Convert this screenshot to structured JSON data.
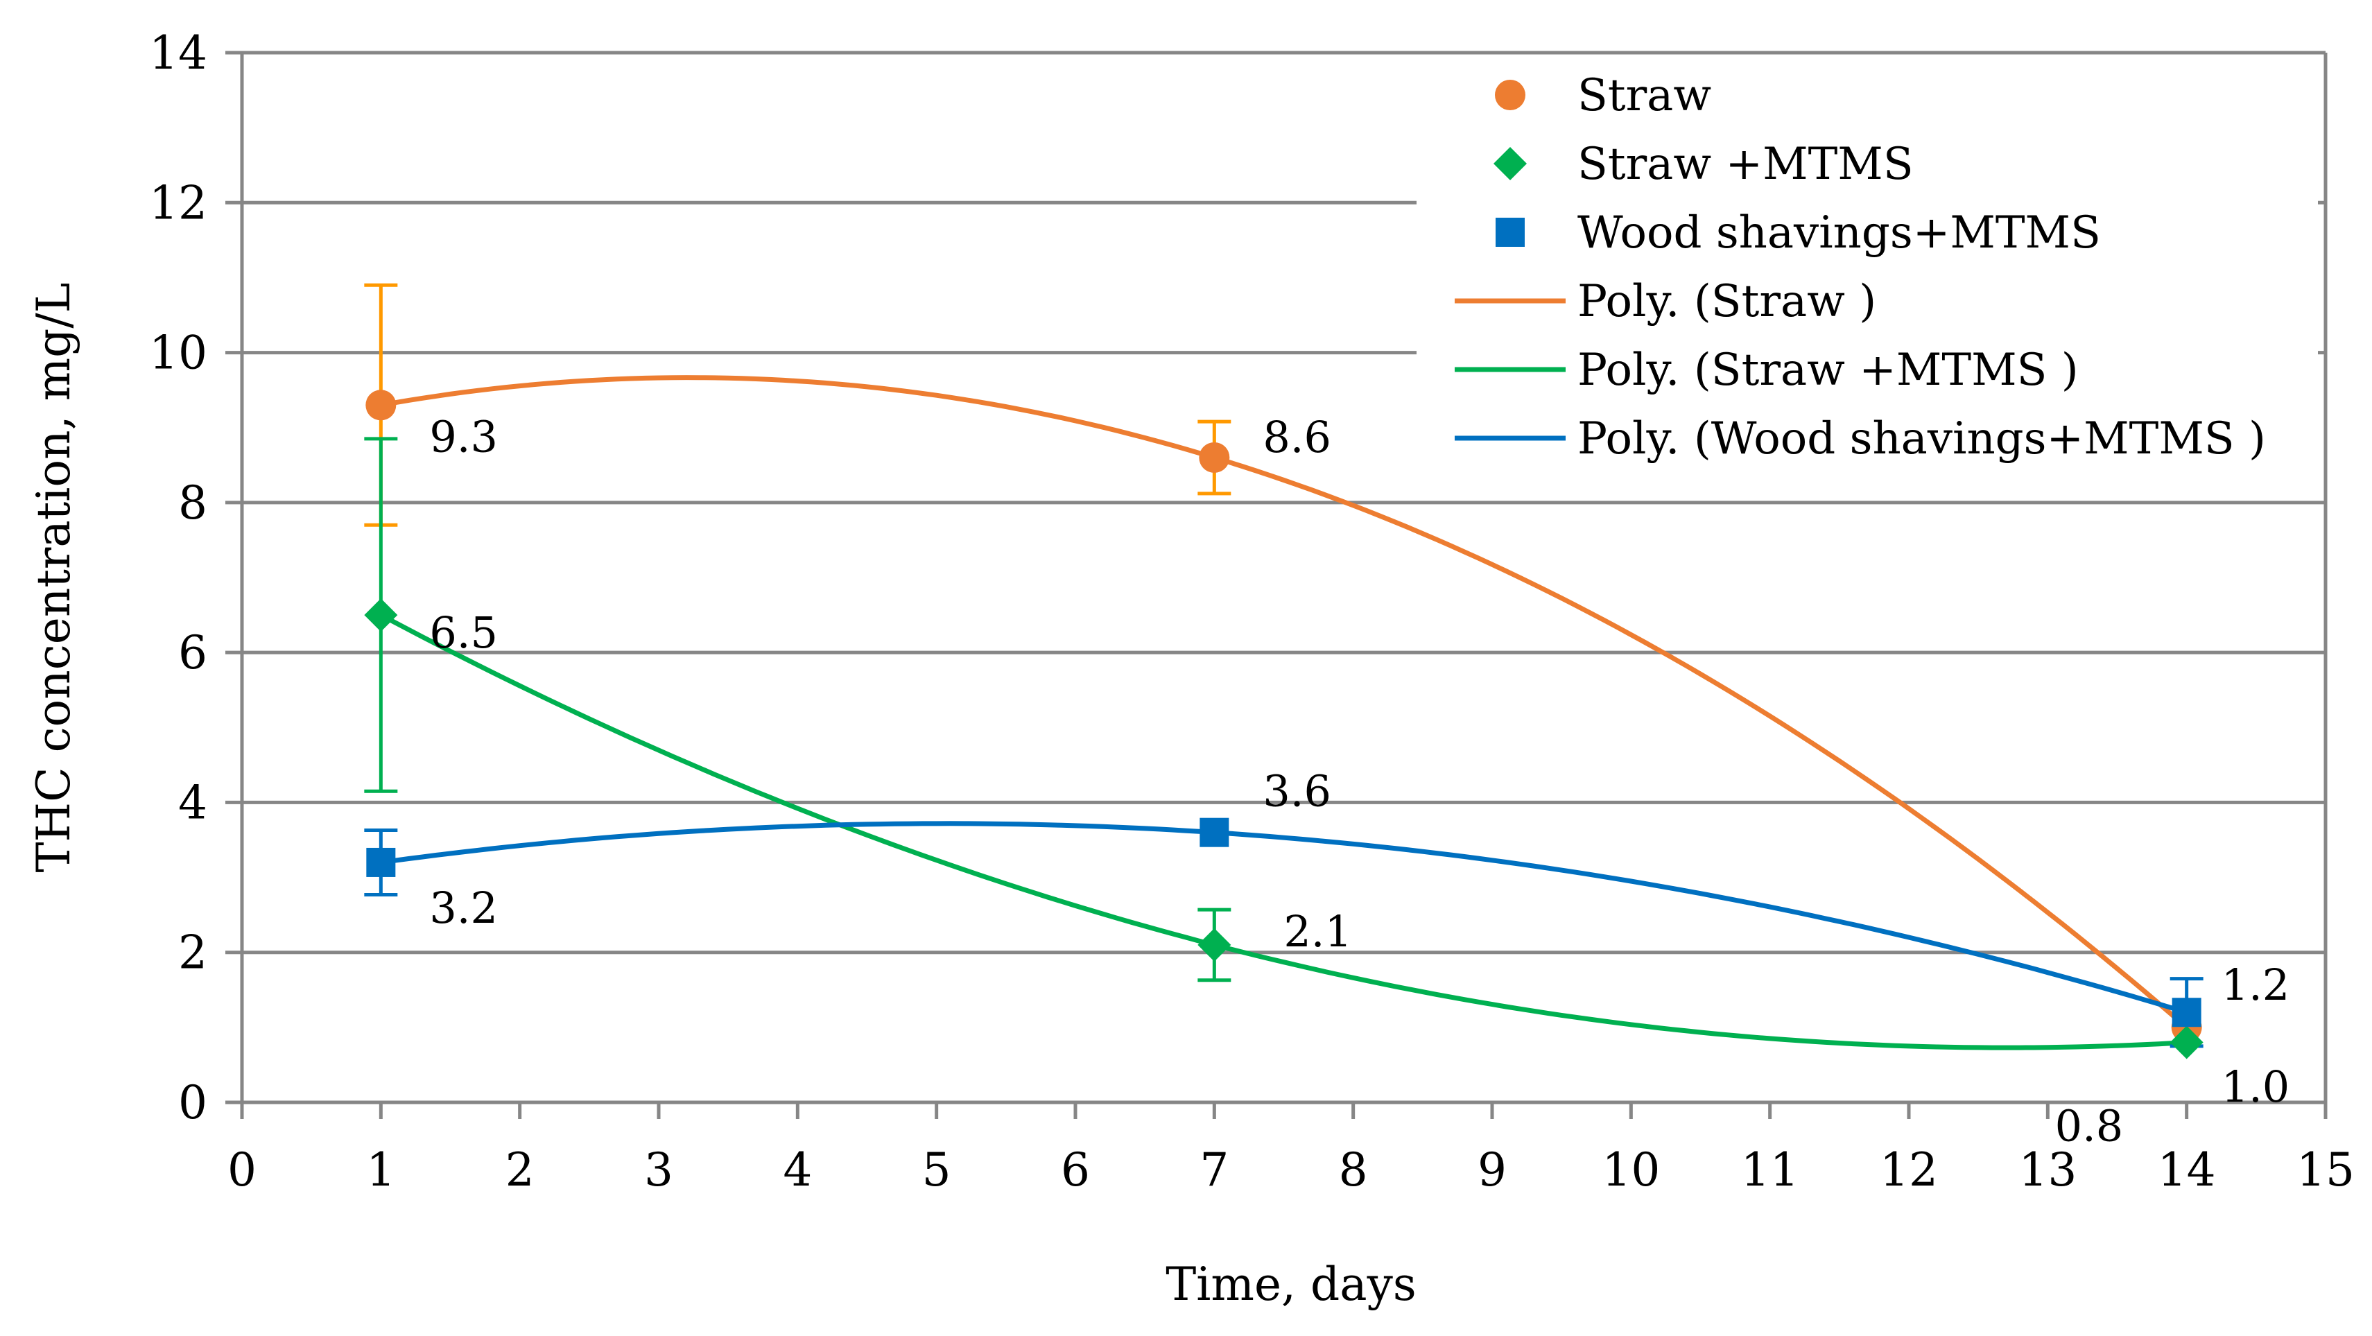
{
  "chart_data": {
    "type": "scatter",
    "xlabel": "Time, days",
    "ylabel": "THC concentration, mg/L",
    "xlim": [
      0,
      15
    ],
    "ylim": [
      0,
      14
    ],
    "xticks": [
      0,
      1,
      2,
      3,
      4,
      5,
      6,
      7,
      8,
      9,
      10,
      11,
      12,
      13,
      14,
      15
    ],
    "yticks": [
      0,
      2,
      4,
      6,
      8,
      10,
      12,
      14
    ],
    "grid": "horizontal",
    "legend_position": "top-right",
    "series": [
      {
        "name": "Straw",
        "marker": "circle",
        "color": "#ED7D31",
        "errcolor": "#FF9900",
        "x": [
          1,
          7,
          14
        ],
        "y": [
          9.3,
          8.6,
          1.0
        ],
        "err": [
          1.6,
          0.48,
          0
        ],
        "labels": [
          "9.3",
          "8.6",
          "1.0"
        ],
        "trend": "Poly. (Straw )"
      },
      {
        "name": "Straw +MTMS",
        "marker": "diamond",
        "color": "#00B050",
        "errcolor": "#00B050",
        "x": [
          1,
          7,
          14
        ],
        "y": [
          6.5,
          2.1,
          0.8
        ],
        "err": [
          2.35,
          0.47,
          0
        ],
        "labels": [
          "6.5",
          "2.1",
          "0.8"
        ],
        "trend": "Poly. (Straw +MTMS )"
      },
      {
        "name": "Wood shavings+MTMS",
        "marker": "square",
        "color": "#0070C0",
        "errcolor": "#0070C0",
        "x": [
          1,
          7,
          14
        ],
        "y": [
          3.2,
          3.6,
          1.2
        ],
        "err": [
          0.43,
          0,
          0.45
        ],
        "labels": [
          "3.2",
          "3.6",
          "1.2"
        ],
        "trend": "Poly. (Wood shavings+MTMS )"
      }
    ]
  }
}
